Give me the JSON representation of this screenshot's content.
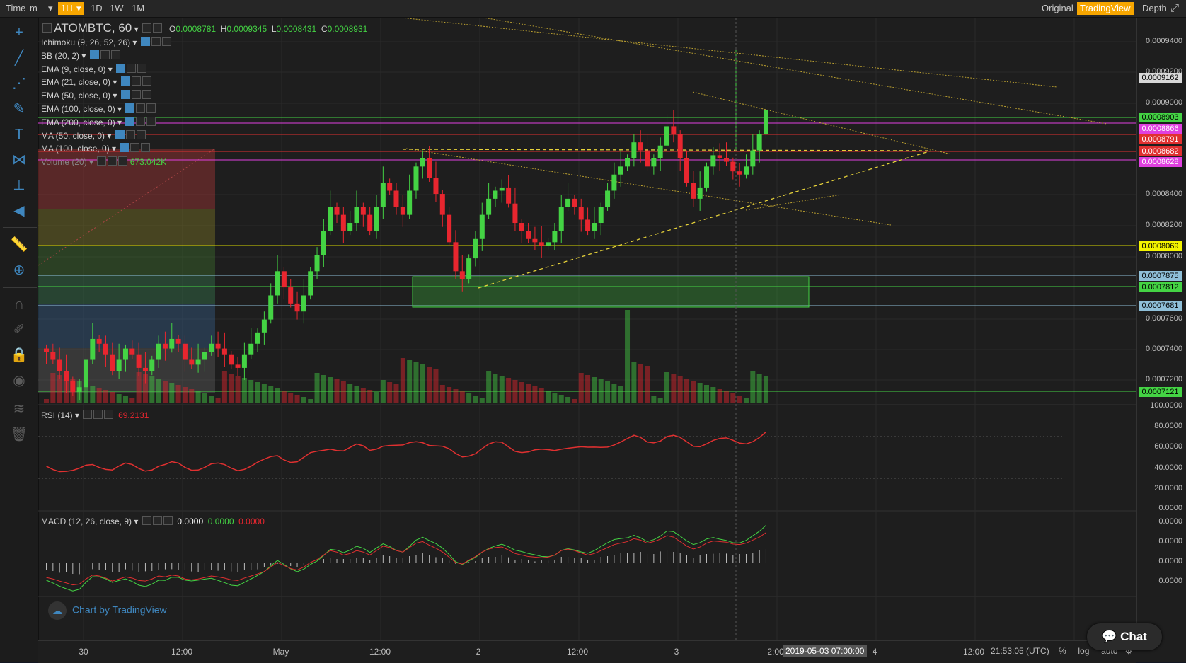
{
  "toolbar": {
    "time_label": "Time",
    "interval_minutes": "m",
    "intervals": [
      "1H",
      "1D",
      "1W",
      "1M"
    ],
    "active_interval": "1H",
    "views": [
      "Original",
      "TradingView",
      "Depth"
    ],
    "active_view": "TradingView"
  },
  "symbol": {
    "title": "ATOMBTC, 60",
    "open_label": "O",
    "open": "0.0008781",
    "high_label": "H",
    "high": "0.0009345",
    "low_label": "L",
    "low": "0.0008431",
    "close_label": "C",
    "close": "0.0008931"
  },
  "indicators": [
    "Ichimoku (9, 26, 52, 26)",
    "BB (20, 2)",
    "EMA (9, close, 0)",
    "EMA (21, close, 0)",
    "EMA (50, close, 0)",
    "EMA (100, close, 0)",
    "EMA (200, close, 0)",
    "MA (50, close, 0)",
    "MA (100, close, 0)"
  ],
  "volume": {
    "label": "Volume (20)",
    "value": "673.042K"
  },
  "rsi": {
    "label": "RSI (14)",
    "value": "69.2131"
  },
  "macd": {
    "label": "MACD (12, 26, close, 9)",
    "v1": "0.0000",
    "v2": "0.0000",
    "v3": "0.0000"
  },
  "price_axis": {
    "ticks": [
      "0.0009400",
      "0.0009200",
      "0.0009000",
      "0.0008400",
      "0.0008200",
      "0.0008000",
      "0.0007600",
      "0.0007400",
      "0.0007200"
    ],
    "labels": [
      {
        "text": "0.0009162",
        "color": "#d8d8d8"
      },
      {
        "text": "0.0008903",
        "color": "#44d344"
      },
      {
        "text": "0.0008866",
        "color": "#e040e0"
      },
      {
        "text": "0.0008791",
        "color": "#e03030"
      },
      {
        "text": "0.0008682",
        "color": "#e03030"
      },
      {
        "text": "0.0008628",
        "color": "#e040e0"
      },
      {
        "text": "0.0008069",
        "color": "#f4f400"
      },
      {
        "text": "0.0007875",
        "color": "#8fbfd8"
      },
      {
        "text": "0.0007812",
        "color": "#44d344"
      },
      {
        "text": "0.0007681",
        "color": "#8fbfd8"
      },
      {
        "text": "0.0007121",
        "color": "#44d344"
      }
    ],
    "rsi_ticks": [
      "100.0000",
      "80.0000",
      "60.0000",
      "40.0000",
      "20.0000",
      "0.0000"
    ],
    "macd_ticks": [
      "0.0000",
      "0.0000",
      "0.0000",
      "0.0000"
    ]
  },
  "time_axis": {
    "ticks": [
      "30",
      "12:00",
      "May",
      "12:00",
      "2",
      "12:00",
      "3",
      "2:00",
      "4",
      "12:00"
    ],
    "crosshair_label": "2019-05-03 07:00:00"
  },
  "status": {
    "clock": "21:53:05 (UTC)",
    "percent": "%",
    "log": "log",
    "auto": "auto"
  },
  "branding": {
    "text": "Chart by TradingView"
  },
  "chat": {
    "label": "Chat"
  },
  "colors": {
    "up": "#44d344",
    "down": "#e8262f",
    "accent": "#3f87bf",
    "active": "#f7a600"
  },
  "chart_data": {
    "type": "candlestick",
    "title": "ATOMBTC, 60",
    "ylim": [
      0.000708,
      0.000943
    ],
    "candles_close": [
      0.00074,
      0.000735,
      0.000728,
      0.000722,
      0.000715,
      0.000718,
      0.000735,
      0.000748,
      0.000745,
      0.000738,
      0.000728,
      0.000735,
      0.000742,
      0.000738,
      0.00073,
      0.000728,
      0.000735,
      0.000745,
      0.000742,
      0.000748,
      0.000745,
      0.000735,
      0.000732,
      0.000735,
      0.00074,
      0.000745,
      0.000742,
      0.000738,
      0.000732,
      0.00073,
      0.000738,
      0.000745,
      0.000752,
      0.00076,
      0.000775,
      0.00079,
      0.00078,
      0.00077,
      0.000765,
      0.000775,
      0.00079,
      0.0008,
      0.000815,
      0.00083,
      0.000825,
      0.000815,
      0.00082,
      0.00083,
      0.000825,
      0.000815,
      0.00083,
      0.000845,
      0.00084,
      0.00083,
      0.000825,
      0.00084,
      0.000855,
      0.00086,
      0.000848,
      0.000838,
      0.000825,
      0.000808,
      0.00079,
      0.000785,
      0.000798,
      0.00081,
      0.000825,
      0.000835,
      0.00084,
      0.000842,
      0.000832,
      0.00082,
      0.000815,
      0.00081,
      0.000808,
      0.000806,
      0.000808,
      0.000815,
      0.00083,
      0.000835,
      0.00083,
      0.000822,
      0.000815,
      0.00082,
      0.00083,
      0.00084,
      0.00085,
      0.000855,
      0.00086,
      0.00087,
      0.000865,
      0.000855,
      0.00086,
      0.000868,
      0.00088,
      0.000875,
      0.00086,
      0.000845,
      0.000835,
      0.000842,
      0.000855,
      0.000862,
      0.00086,
      0.000858,
      0.000852,
      0.00085,
      0.000855,
      0.000865,
      0.000875,
      0.00089
    ],
    "volume_levels": "relative bars, peak near 2019-05-03 07:00",
    "rsi_last": 69.2131
  }
}
